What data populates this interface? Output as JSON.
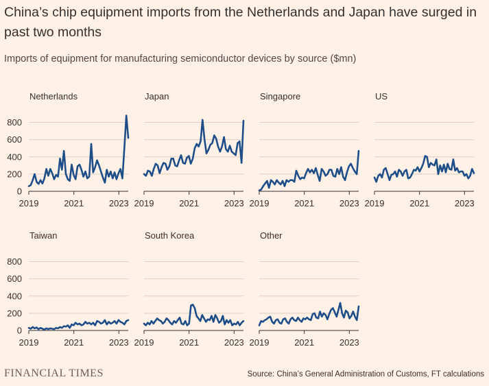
{
  "title": "China’s chip equipment imports from the Netherlands and Japan have surged in past two months",
  "subtitle": "Imports of equipment for manufacturing semiconductor devices by source ($mn)",
  "source": "Source: China’s General Administration of Customs, FT calculations",
  "logo": "FINANCIAL TIMES",
  "colors": {
    "line": "#1d4e89",
    "background": "#fff1e5",
    "grid": "#d9cfc4"
  },
  "chart_data": {
    "type": "line",
    "x_start": "2019-01",
    "xticks": [
      {
        "label": "2019",
        "month": 0
      },
      {
        "label": "2021",
        "month": 24
      },
      {
        "label": "2023",
        "month": 48
      }
    ],
    "xlim": [
      0,
      53
    ],
    "ylim": [
      0,
      900
    ],
    "yticks": [
      0,
      200,
      400,
      600,
      800
    ],
    "panels": [
      {
        "name": "Netherlands",
        "values": [
          60,
          70,
          130,
          200,
          110,
          85,
          130,
          90,
          150,
          260,
          180,
          260,
          210,
          140,
          190,
          170,
          380,
          250,
          470,
          200,
          140,
          120,
          310,
          190,
          140,
          290,
          310,
          250,
          170,
          230,
          150,
          170,
          550,
          220,
          280,
          360,
          300,
          230,
          160,
          100,
          250,
          170,
          230,
          150,
          220,
          140,
          210,
          260,
          150,
          500,
          880,
          620
        ]
      },
      {
        "name": "Japan",
        "values": [
          200,
          180,
          240,
          230,
          180,
          260,
          320,
          300,
          210,
          280,
          330,
          320,
          250,
          290,
          380,
          380,
          300,
          290,
          360,
          420,
          330,
          320,
          390,
          410,
          320,
          380,
          500,
          550,
          520,
          580,
          830,
          610,
          440,
          480,
          540,
          560,
          650,
          610,
          520,
          460,
          520,
          630,
          490,
          460,
          530,
          460,
          440,
          420,
          560,
          580,
          330,
          820
        ]
      },
      {
        "name": "Singapore",
        "values": [
          10,
          20,
          60,
          90,
          120,
          40,
          130,
          110,
          80,
          130,
          100,
          80,
          120,
          60,
          130,
          110,
          130,
          130,
          110,
          240,
          180,
          140,
          160,
          150,
          210,
          260,
          220,
          250,
          210,
          270,
          190,
          120,
          260,
          230,
          180,
          200,
          250,
          250,
          180,
          170,
          260,
          200,
          280,
          170,
          130,
          220,
          290,
          320,
          270,
          230,
          200,
          470
        ]
      },
      {
        "name": "US",
        "values": [
          160,
          110,
          180,
          200,
          160,
          250,
          270,
          200,
          130,
          190,
          200,
          230,
          170,
          250,
          230,
          180,
          230,
          250,
          150,
          160,
          200,
          250,
          240,
          280,
          230,
          270,
          320,
          410,
          400,
          280,
          330,
          310,
          300,
          370,
          200,
          300,
          230,
          310,
          220,
          320,
          260,
          250,
          370,
          240,
          270,
          220,
          230,
          230,
          180,
          200,
          150,
          180,
          260,
          210
        ]
      },
      {
        "name": "Taiwan",
        "values": [
          30,
          20,
          40,
          25,
          35,
          15,
          30,
          20,
          10,
          25,
          15,
          25,
          20,
          15,
          30,
          25,
          40,
          30,
          50,
          45,
          60,
          30,
          70,
          60,
          90,
          70,
          80,
          60,
          70,
          100,
          80,
          90,
          70,
          90,
          60,
          110,
          100,
          80,
          90,
          120,
          70,
          100,
          80,
          90,
          110,
          80,
          120,
          100,
          90,
          70,
          110,
          120
        ]
      },
      {
        "name": "South Korea",
        "values": [
          80,
          60,
          90,
          70,
          110,
          80,
          110,
          140,
          120,
          110,
          80,
          100,
          140,
          120,
          90,
          70,
          110,
          90,
          120,
          150,
          80,
          70,
          110,
          60,
          80,
          290,
          300,
          260,
          170,
          140,
          110,
          180,
          140,
          100,
          130,
          120,
          170,
          100,
          180,
          140,
          90,
          110,
          170,
          70,
          120,
          90,
          120,
          60,
          80,
          70,
          100,
          60,
          90,
          110
        ]
      },
      {
        "name": "Other",
        "values": [
          60,
          110,
          100,
          120,
          130,
          150,
          160,
          100,
          80,
          120,
          130,
          90,
          80,
          130,
          140,
          100,
          80,
          130,
          150,
          120,
          110,
          150,
          120,
          100,
          140,
          130,
          150,
          130,
          120,
          190,
          200,
          150,
          140,
          220,
          160,
          200,
          180,
          130,
          190,
          240,
          260,
          210,
          160,
          240,
          320,
          200,
          150,
          230,
          210,
          140,
          170,
          220,
          160,
          120,
          280
        ]
      }
    ]
  }
}
